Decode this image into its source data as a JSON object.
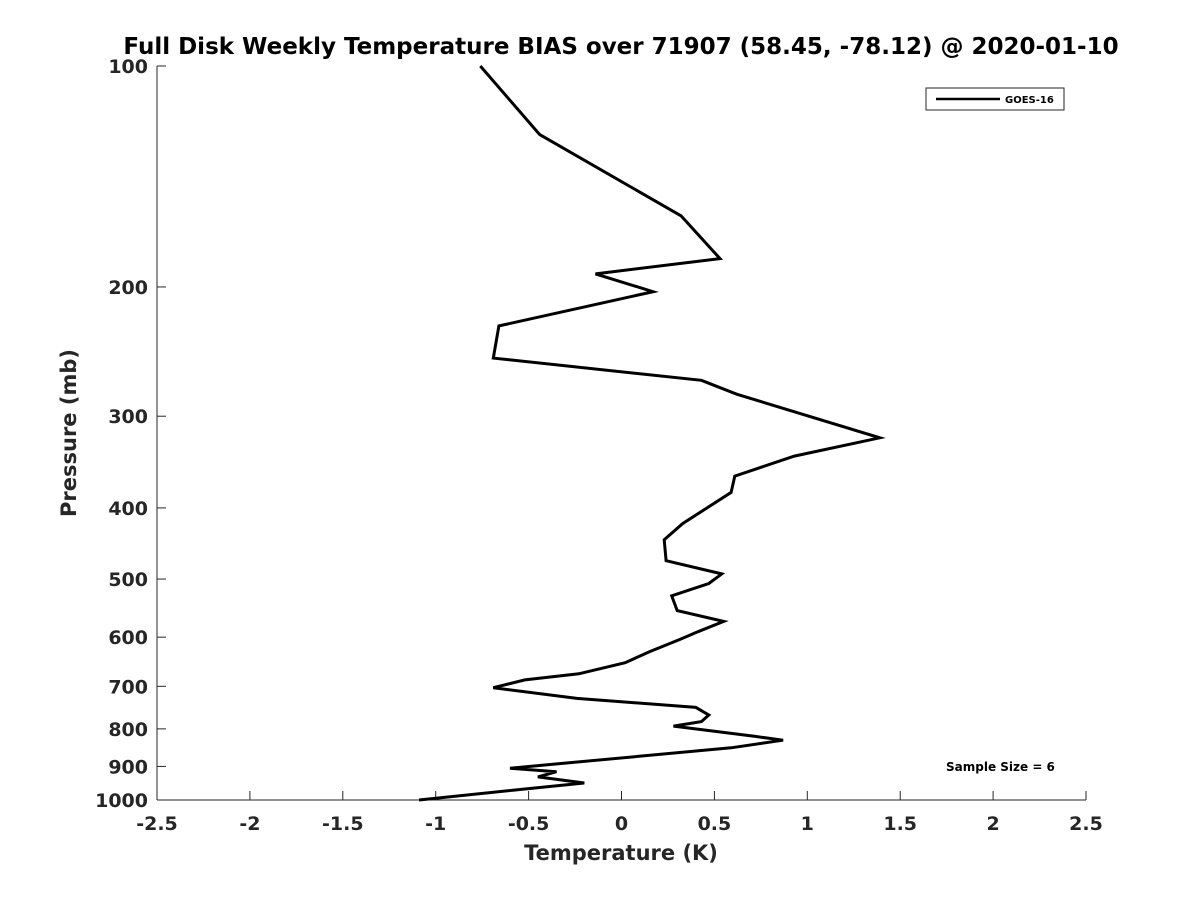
{
  "chart_data": {
    "type": "line",
    "title": "Full Disk Weekly Temperature BIAS over 71907 (58.45, -78.12) @ 2020-01-10",
    "xlabel": "Temperature (K)",
    "ylabel": "Pressure (mb)",
    "xlim": [
      -2.5,
      2.5
    ],
    "ylim": [
      100,
      1000
    ],
    "yscale": "log",
    "yreversed": true,
    "x_ticks": [
      "-2.5",
      "-2",
      "-1.5",
      "-1",
      "-0.5",
      "0",
      "0.5",
      "1",
      "1.5",
      "2",
      "2.5"
    ],
    "y_ticks": [
      "100",
      "200",
      "300",
      "400",
      "500",
      "600",
      "700",
      "800",
      "900",
      "1000"
    ],
    "grid": false,
    "legend_position": "top-right",
    "series": [
      {
        "name": "GOES-16",
        "color": "#000000",
        "points": [
          [
            -0.76,
            100
          ],
          [
            -0.44,
            124
          ],
          [
            0.32,
            160
          ],
          [
            0.53,
            183
          ],
          [
            -0.14,
            192
          ],
          [
            0.17,
            203
          ],
          [
            -0.66,
            226
          ],
          [
            -0.69,
            250
          ],
          [
            0.43,
            268
          ],
          [
            0.62,
            280
          ],
          [
            1.39,
            321
          ],
          [
            0.93,
            340
          ],
          [
            0.61,
            362
          ],
          [
            0.59,
            381
          ],
          [
            0.33,
            420
          ],
          [
            0.23,
            442
          ],
          [
            0.24,
            472
          ],
          [
            0.54,
            492
          ],
          [
            0.47,
            507
          ],
          [
            0.27,
            527
          ],
          [
            0.3,
            552
          ],
          [
            0.55,
            571
          ],
          [
            0.41,
            590
          ],
          [
            0.31,
            605
          ],
          [
            0.15,
            628
          ],
          [
            0.02,
            650
          ],
          [
            -0.23,
            673
          ],
          [
            -0.52,
            686
          ],
          [
            -0.69,
            703
          ],
          [
            -0.24,
            727
          ],
          [
            0.4,
            748
          ],
          [
            0.47,
            766
          ],
          [
            0.43,
            782
          ],
          [
            0.28,
            793
          ],
          [
            0.72,
            819
          ],
          [
            0.87,
            829
          ],
          [
            0.59,
            849
          ],
          [
            -0.6,
            905
          ],
          [
            -0.35,
            915
          ],
          [
            -0.45,
            930
          ],
          [
            -0.2,
            948
          ],
          [
            -0.52,
            966
          ],
          [
            -1.09,
            1000
          ]
        ]
      }
    ],
    "annotations": [
      "Sample Size = 6"
    ]
  }
}
